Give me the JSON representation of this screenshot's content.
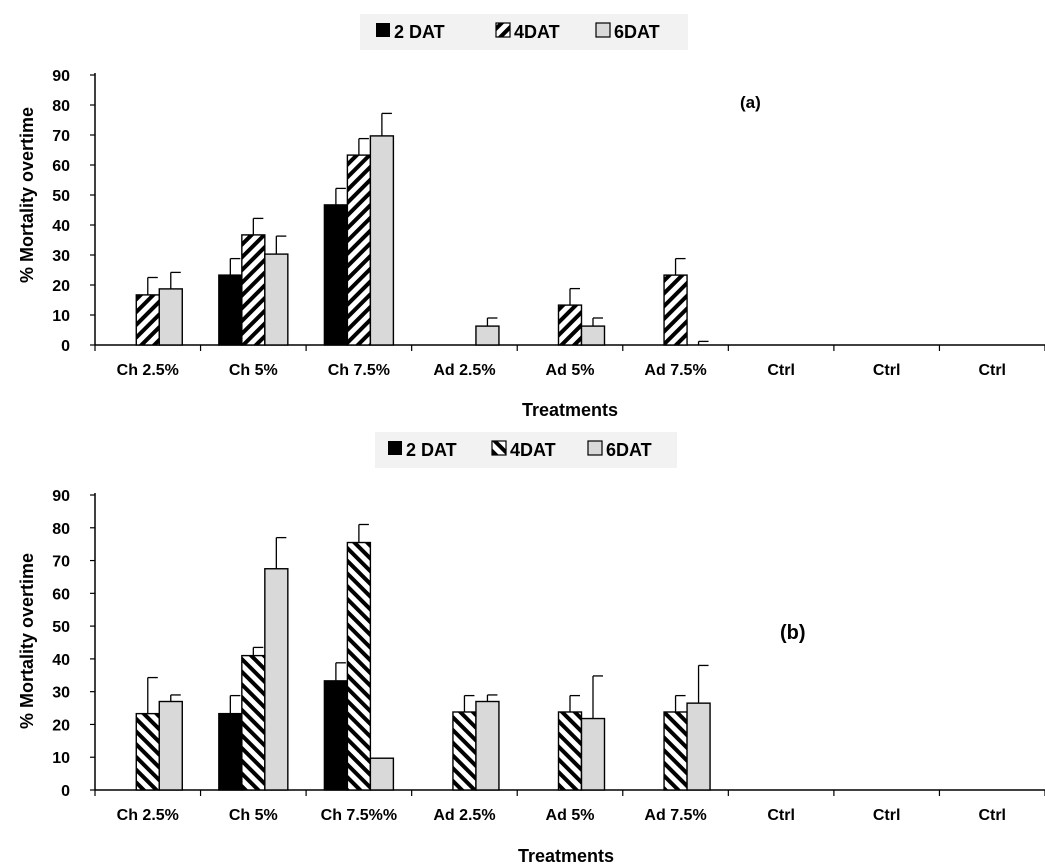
{
  "colors": {
    "dat2": "#000000",
    "dat4": "#ffffff",
    "dat6": "#d9d9d9",
    "axis": "#000000"
  },
  "chart_data": [
    {
      "type": "bar",
      "panel_label": "(a)",
      "xlabel": "Treatments",
      "ylabel": "% Mortality overtime",
      "ylim": [
        0,
        90
      ],
      "yticks": [
        0,
        10,
        20,
        30,
        40,
        50,
        60,
        70,
        80,
        90
      ],
      "legend_position": "top-center",
      "categories": [
        "Ch 2.5%",
        "Ch 5%",
        "Ch 7.5%",
        "Ad 2.5%",
        "Ad 5%",
        "Ad 7.5%",
        "Ctrl",
        "Ctrl",
        "Ctrl"
      ],
      "series": [
        {
          "name": "2 DAT",
          "pattern": "solid-black",
          "values": [
            0,
            23.3,
            46.7,
            0,
            0,
            0,
            0,
            0,
            0
          ],
          "errors": [
            0,
            5.5,
            5.5,
            0,
            0,
            0,
            0,
            0,
            0
          ]
        },
        {
          "name": "4DAT",
          "pattern": "hatch-forward",
          "values": [
            16.7,
            36.7,
            63.3,
            0,
            13.3,
            23.3,
            0,
            0,
            0
          ],
          "errors": [
            5.8,
            5.5,
            5.5,
            0,
            5.5,
            5.5,
            0,
            0,
            0
          ]
        },
        {
          "name": "6DAT",
          "pattern": "solid-gray",
          "values": [
            18.7,
            30.3,
            69.7,
            6.3,
            6.3,
            0,
            0,
            0,
            0
          ],
          "errors": [
            5.5,
            6,
            7.5,
            2.7,
            2.7,
            1.2,
            0,
            0,
            0
          ]
        }
      ]
    },
    {
      "type": "bar",
      "panel_label": "(b)",
      "xlabel": "Treatments",
      "ylabel": "% Mortality overtime",
      "ylim": [
        0,
        90
      ],
      "yticks": [
        0,
        10,
        20,
        30,
        40,
        50,
        60,
        70,
        80,
        90
      ],
      "legend_position": "top-center",
      "categories": [
        "Ch 2.5%",
        "Ch 5%",
        "Ch 7.5%%",
        "Ad 2.5%",
        "Ad 5%",
        "Ad 7.5%",
        "Ctrl",
        "Ctrl",
        "Ctrl"
      ],
      "series": [
        {
          "name": "2 DAT",
          "pattern": "solid-black",
          "values": [
            0,
            23.3,
            33.3,
            0,
            0,
            0,
            0,
            0,
            0
          ],
          "errors": [
            0,
            5.5,
            5.5,
            0,
            0,
            0,
            0,
            0,
            0
          ]
        },
        {
          "name": "4DAT",
          "pattern": "hatch-backward",
          "values": [
            23.3,
            41,
            75.5,
            23.8,
            23.8,
            23.8,
            0,
            0,
            0
          ],
          "errors": [
            11,
            2.5,
            5.5,
            5,
            5,
            5,
            0,
            0,
            0
          ]
        },
        {
          "name": "6DAT",
          "pattern": "solid-gray",
          "values": [
            27,
            67.5,
            9.7,
            27,
            21.8,
            26.5,
            0,
            0,
            0
          ],
          "errors": [
            2,
            9.5,
            0,
            2,
            13,
            11.5,
            0,
            0,
            0
          ]
        }
      ]
    }
  ]
}
